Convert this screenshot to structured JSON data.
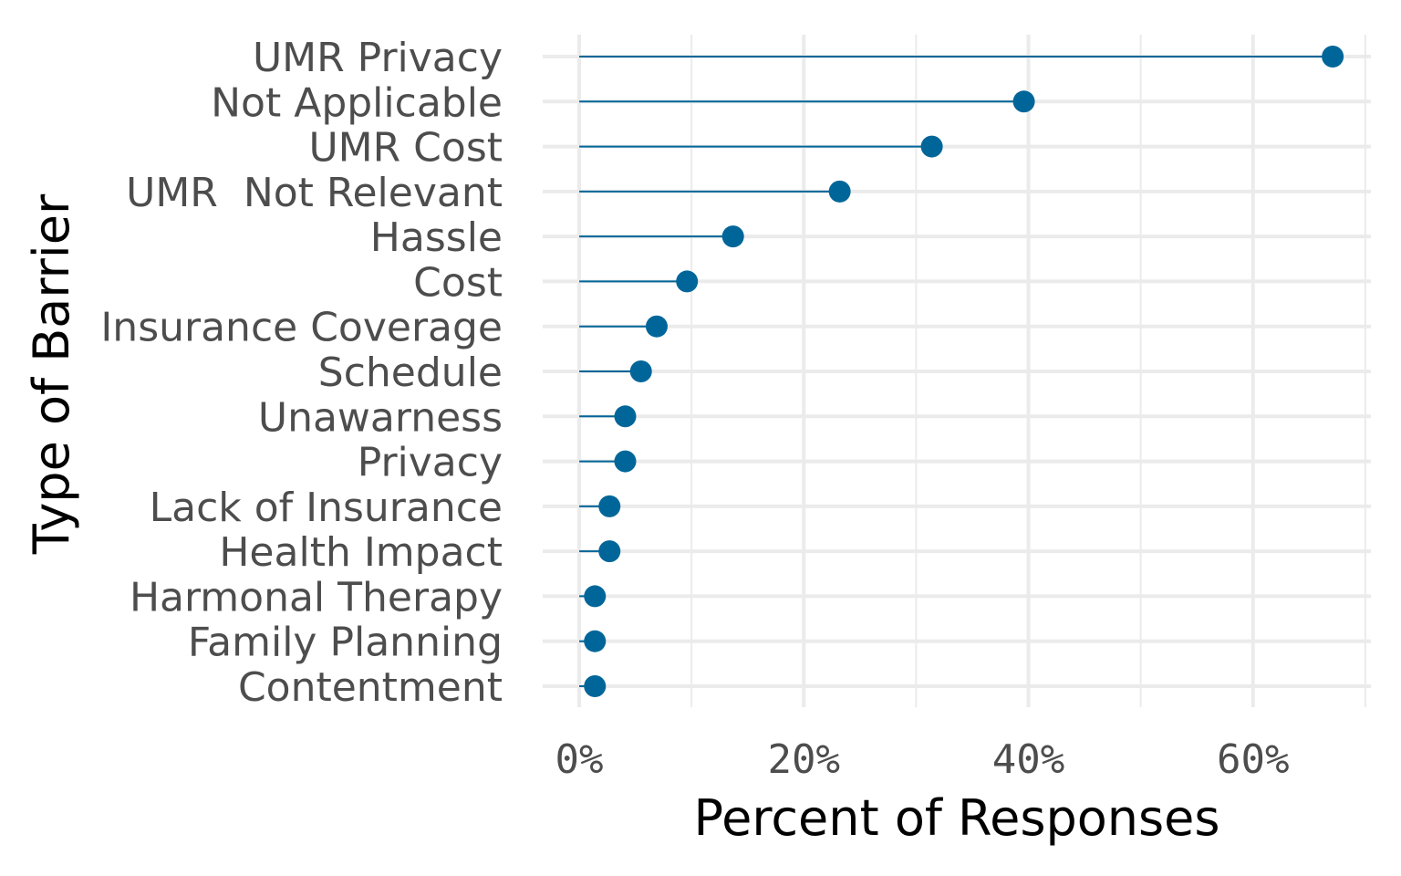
{
  "chart_data": {
    "type": "lollipop",
    "xlabel": "Percent of Responses",
    "ylabel": "Type of Barrier",
    "xlim": [
      -0.0325,
      0.705
    ],
    "x_ticks": [
      {
        "value": 0.0,
        "label": "0%"
      },
      {
        "value": 0.2,
        "label": "20%"
      },
      {
        "value": 0.4,
        "label": "40%"
      },
      {
        "value": 0.6,
        "label": "60%"
      }
    ],
    "x_minor_ticks": [
      0.1,
      0.3,
      0.5,
      0.7
    ],
    "grid": true,
    "legend": "none",
    "colors": {
      "point": "#006699",
      "segment": "#006699",
      "grid": "#ebebeb",
      "background": "#ffffff"
    },
    "categories": [
      "UMR Privacy",
      "Not Applicable",
      "UMR Cost",
      "UMR  Not Relevant",
      "Hassle",
      "Cost",
      "Insurance Coverage",
      "Schedule",
      "Unawarness",
      "Privacy",
      "Lack of Insurance",
      "Health Impact",
      "Harmonal Therapy",
      "Family Planning",
      "Contentment"
    ],
    "values": [
      0.671,
      0.396,
      0.314,
      0.232,
      0.137,
      0.096,
      0.069,
      0.055,
      0.041,
      0.041,
      0.027,
      0.027,
      0.014,
      0.014,
      0.014
    ]
  }
}
